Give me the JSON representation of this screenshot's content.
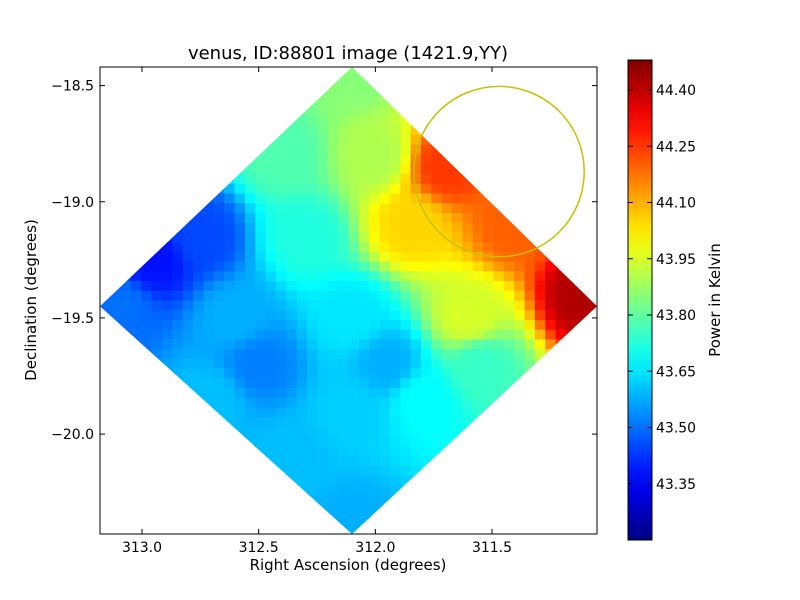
{
  "chart_data": {
    "type": "heatmap",
    "title": "venus, ID:88801 image (1421.9,YY)",
    "xlabel": "Right Ascension (degrees)",
    "ylabel": "Declination (degrees)",
    "xlim": [
      313.18,
      311.05
    ],
    "ylim": [
      -20.43,
      -18.42
    ],
    "x_ticks": [
      313.0,
      312.5,
      312.0,
      311.5
    ],
    "x_tick_labels": [
      "313.0",
      "312.5",
      "312.0",
      "311.5"
    ],
    "y_ticks": [
      -18.5,
      -19.0,
      -19.5,
      -20.0
    ],
    "y_tick_labels": [
      "−18.5",
      "−19.0",
      "−19.5",
      "−20.0"
    ],
    "colorbar": {
      "label": "Power in Kelvin",
      "range": [
        43.2,
        44.48
      ],
      "ticks": [
        43.35,
        43.5,
        43.65,
        43.8,
        43.95,
        44.1,
        44.25,
        44.4
      ],
      "tick_labels": [
        "43.35",
        "43.50",
        "43.65",
        "43.80",
        "43.95",
        "44.10",
        "44.25",
        "44.40"
      ],
      "colormap": "jet"
    },
    "map_corners": {
      "top": [
        312.1,
        -18.42
      ],
      "right": [
        311.05,
        -19.45
      ],
      "bottom": [
        312.1,
        -20.43
      ],
      "left": [
        313.18,
        -19.45
      ]
    },
    "field_samples": [
      {
        "x": 312.1,
        "y": -18.45,
        "v": 43.85
      },
      {
        "x": 311.7,
        "y": -18.85,
        "v": 44.25
      },
      {
        "x": 311.4,
        "y": -19.1,
        "v": 44.2
      },
      {
        "x": 311.1,
        "y": -19.4,
        "v": 44.42
      },
      {
        "x": 311.6,
        "y": -19.5,
        "v": 43.95
      },
      {
        "x": 311.85,
        "y": -19.1,
        "v": 44.05
      },
      {
        "x": 312.0,
        "y": -18.8,
        "v": 43.9
      },
      {
        "x": 312.4,
        "y": -18.8,
        "v": 43.78
      },
      {
        "x": 312.3,
        "y": -19.15,
        "v": 43.72
      },
      {
        "x": 312.75,
        "y": -19.15,
        "v": 43.45
      },
      {
        "x": 312.95,
        "y": -19.25,
        "v": 43.38
      },
      {
        "x": 313.1,
        "y": -19.45,
        "v": 43.5
      },
      {
        "x": 312.6,
        "y": -19.5,
        "v": 43.58
      },
      {
        "x": 312.5,
        "y": -19.7,
        "v": 43.52
      },
      {
        "x": 312.1,
        "y": -19.5,
        "v": 43.65
      },
      {
        "x": 311.95,
        "y": -19.7,
        "v": 43.58
      },
      {
        "x": 311.8,
        "y": -19.85,
        "v": 43.68
      },
      {
        "x": 312.1,
        "y": -19.9,
        "v": 43.62
      },
      {
        "x": 312.35,
        "y": -20.1,
        "v": 43.6
      },
      {
        "x": 312.1,
        "y": -20.38,
        "v": 43.58
      },
      {
        "x": 312.7,
        "y": -19.85,
        "v": 43.6
      },
      {
        "x": 311.55,
        "y": -19.7,
        "v": 43.75
      }
    ],
    "circle": {
      "center": [
        311.47,
        -18.87
      ],
      "radius_deg": 0.365,
      "color": "#c8c000"
    }
  }
}
